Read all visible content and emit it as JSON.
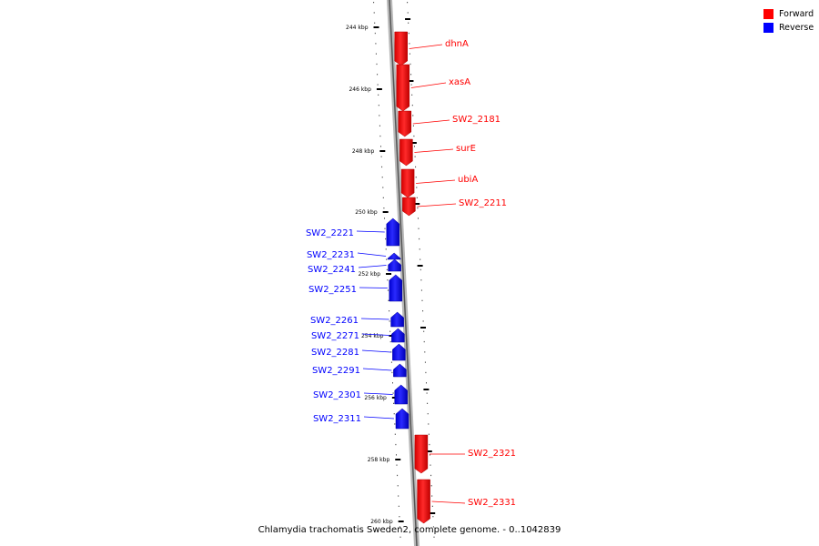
{
  "title": "Chlamydia trachomatis Sweden2, complete genome. - 0..1042839",
  "legend": {
    "forward": {
      "label": "Forward",
      "color": "#ff0000"
    },
    "reverse": {
      "label": "Reverse",
      "color": "#0000ff"
    }
  },
  "chart_data": {
    "type": "genome map",
    "axis_unit": "kbp",
    "ticks": [
      "244 kbp",
      "246 kbp",
      "248 kbp",
      "250 kbp",
      "252 kbp",
      "254 kbp",
      "256 kbp",
      "258 kbp",
      "260 kbp"
    ],
    "genes": [
      {
        "label": "dhnA",
        "strand": "forward"
      },
      {
        "label": "xasA",
        "strand": "forward"
      },
      {
        "label": "SW2_2181",
        "strand": "forward"
      },
      {
        "label": "surE",
        "strand": "forward"
      },
      {
        "label": "ubiA",
        "strand": "forward"
      },
      {
        "label": "SW2_2211",
        "strand": "forward"
      },
      {
        "label": "SW2_2221",
        "strand": "reverse"
      },
      {
        "label": "SW2_2231",
        "strand": "reverse"
      },
      {
        "label": "SW2_2241",
        "strand": "reverse"
      },
      {
        "label": "SW2_2251",
        "strand": "reverse"
      },
      {
        "label": "SW2_2261",
        "strand": "reverse"
      },
      {
        "label": "SW2_2271",
        "strand": "reverse"
      },
      {
        "label": "SW2_2281",
        "strand": "reverse"
      },
      {
        "label": "SW2_2291",
        "strand": "reverse"
      },
      {
        "label": "SW2_2301",
        "strand": "reverse"
      },
      {
        "label": "SW2_2311",
        "strand": "reverse"
      },
      {
        "label": "SW2_2321",
        "strand": "forward"
      },
      {
        "label": "SW2_2331",
        "strand": "forward"
      }
    ]
  }
}
